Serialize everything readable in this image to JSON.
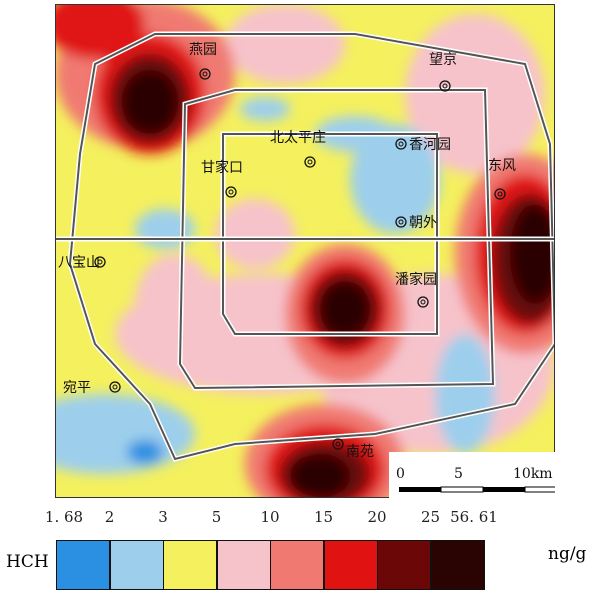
{
  "map": {
    "places": [
      {
        "name": "燕园"
      },
      {
        "name": "望京"
      },
      {
        "name": "北太平庄"
      },
      {
        "name": "香河园"
      },
      {
        "name": "东风"
      },
      {
        "name": "甘家口"
      },
      {
        "name": "朝外"
      },
      {
        "name": "八宝山"
      },
      {
        "name": "潘家园"
      },
      {
        "name": "宛平"
      },
      {
        "name": "南苑"
      }
    ],
    "scale": {
      "ticks": [
        "0",
        "5",
        "10km"
      ]
    }
  },
  "legend": {
    "label": "HCH",
    "unit": "ng/g",
    "breaks": [
      "1. 68",
      "2",
      "3",
      "5",
      "10",
      "15",
      "20",
      "25",
      "56. 61"
    ],
    "colors": [
      "#2b8fe2",
      "#9dcfec",
      "#f4f05e",
      "#f6c3cb",
      "#f07a72",
      "#e01212",
      "#6b0707",
      "#2a0303"
    ]
  }
}
